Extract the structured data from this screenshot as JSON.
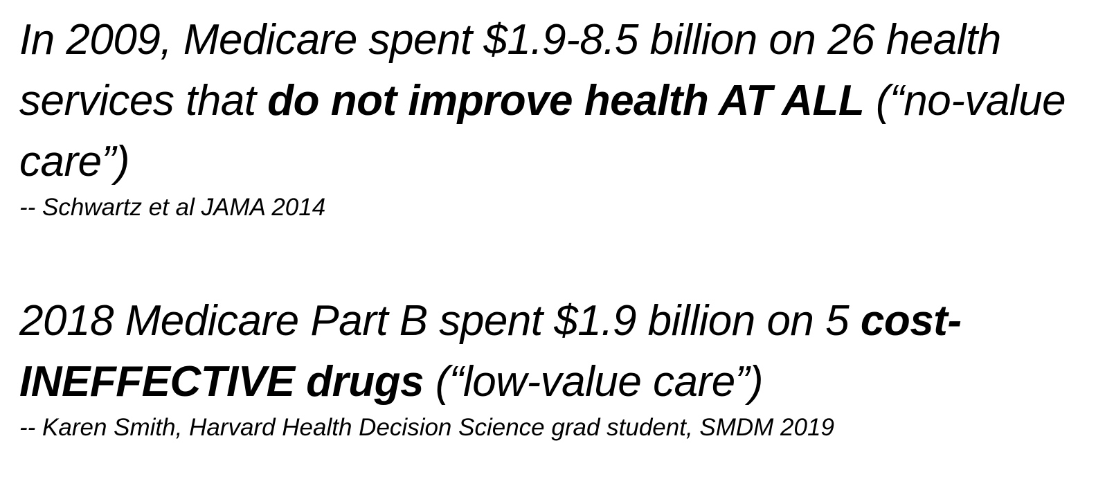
{
  "blocks": [
    {
      "statement_lead": "In 2009, Medicare spent $1.9-8.5 billion on 26 health services that ",
      "statement_emphasis": "do not improve health AT ALL",
      "statement_tail": " (“no-value care”)",
      "citation": "-- Schwartz et al JAMA 2014"
    },
    {
      "statement_lead": "2018 Medicare Part B spent $1.9 billion on 5 ",
      "statement_emphasis": "cost-INEFFECTIVE drugs",
      "statement_tail": " (“low-value care”)",
      "citation": "-- Karen Smith, Harvard Health Decision Science grad student, SMDM 2019"
    }
  ]
}
